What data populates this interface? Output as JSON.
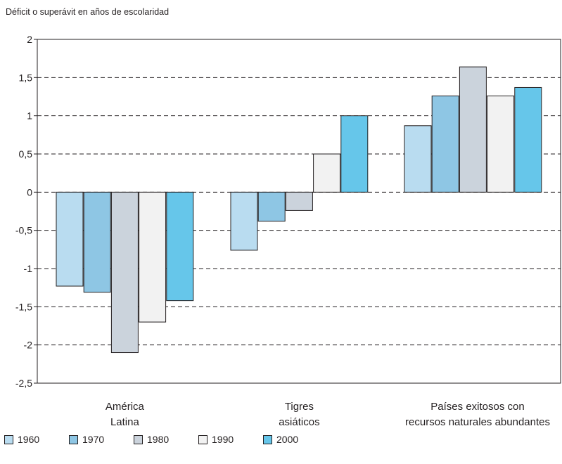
{
  "chart_data": {
    "type": "bar",
    "title": "Déficit o superávit en años de escolaridad",
    "categories": [
      "América\nLatina",
      "Tigres\nasiáticos",
      "Países exitosos con\nrecursos naturales abundantes"
    ],
    "series": [
      {
        "name": "1960",
        "color": "#b9dcf0",
        "values": [
          -1.23,
          -0.76,
          0.87
        ]
      },
      {
        "name": "1970",
        "color": "#8ec6e4",
        "values": [
          -1.31,
          -0.38,
          1.26
        ]
      },
      {
        "name": "1980",
        "color": "#cbd3dc",
        "values": [
          -2.1,
          -0.24,
          1.64
        ]
      },
      {
        "name": "1990",
        "color": "#f2f2f2",
        "values": [
          -1.7,
          0.5,
          1.26
        ]
      },
      {
        "name": "2000",
        "color": "#66c6ea",
        "values": [
          -1.42,
          1.0,
          1.37
        ]
      }
    ],
    "ylim": [
      -2.5,
      2
    ],
    "yticks": [
      2,
      1.5,
      1,
      0.5,
      0,
      -0.5,
      -1,
      -1.5,
      -2,
      -2.5
    ],
    "ytick_labels": [
      "2",
      "1,5",
      "1",
      "0,5",
      "0",
      "-0,5",
      "-1",
      "-1,5",
      "-2",
      "-2,5"
    ],
    "grid": "dashed horizontal",
    "legend_position": "bottom-left"
  }
}
